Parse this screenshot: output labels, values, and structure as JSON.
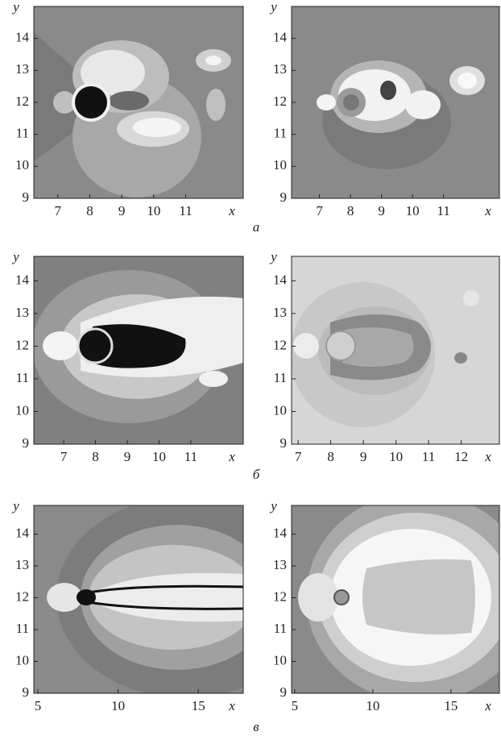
{
  "panel_labels": [
    "а",
    "б",
    "в"
  ],
  "chart_data": [
    {
      "type": "contour",
      "xlabel": "x",
      "ylabel": "y",
      "xlim": [
        6.25,
        12.8
      ],
      "ylim": [
        9,
        15
      ],
      "xticks": [
        7,
        8,
        9,
        10,
        11
      ],
      "yticks": [
        9,
        10,
        11,
        12,
        13,
        14
      ]
    },
    {
      "type": "contour",
      "xlabel": "x",
      "ylabel": "y",
      "xlim": [
        6.1,
        12.8
      ],
      "ylim": [
        9,
        15
      ],
      "xticks": [
        7,
        8,
        9,
        10,
        11
      ],
      "yticks": [
        9,
        10,
        11,
        12,
        13,
        14
      ]
    },
    {
      "type": "contour",
      "xlabel": "x",
      "ylabel": "y",
      "xlim": [
        6.06,
        12.65
      ],
      "ylim": [
        9,
        14.75
      ],
      "xticks": [
        7,
        8,
        9,
        10,
        11
      ],
      "yticks": [
        9,
        10,
        11,
        12,
        13,
        14
      ]
    },
    {
      "type": "contour",
      "xlabel": "x",
      "ylabel": "y",
      "xlim": [
        6.8,
        13.17
      ],
      "ylim": [
        9,
        14.75
      ],
      "xticks": [
        7,
        8,
        9,
        10,
        11,
        12
      ],
      "yticks": [
        9,
        10,
        11,
        12,
        13,
        14
      ]
    },
    {
      "type": "contour",
      "xlabel": "x",
      "ylabel": "y",
      "xlim": [
        4.75,
        17.8
      ],
      "ylim": [
        9,
        14.9
      ],
      "xticks": [
        5,
        10,
        15
      ],
      "yticks": [
        9,
        10,
        11,
        12,
        13,
        14
      ]
    },
    {
      "type": "contour",
      "xlabel": "x",
      "ylabel": "y",
      "xlim": [
        4.8,
        18.1
      ],
      "ylim": [
        9,
        14.9
      ],
      "xticks": [
        5,
        10,
        15
      ],
      "yticks": [
        9,
        10,
        11,
        12,
        13,
        14
      ]
    }
  ]
}
